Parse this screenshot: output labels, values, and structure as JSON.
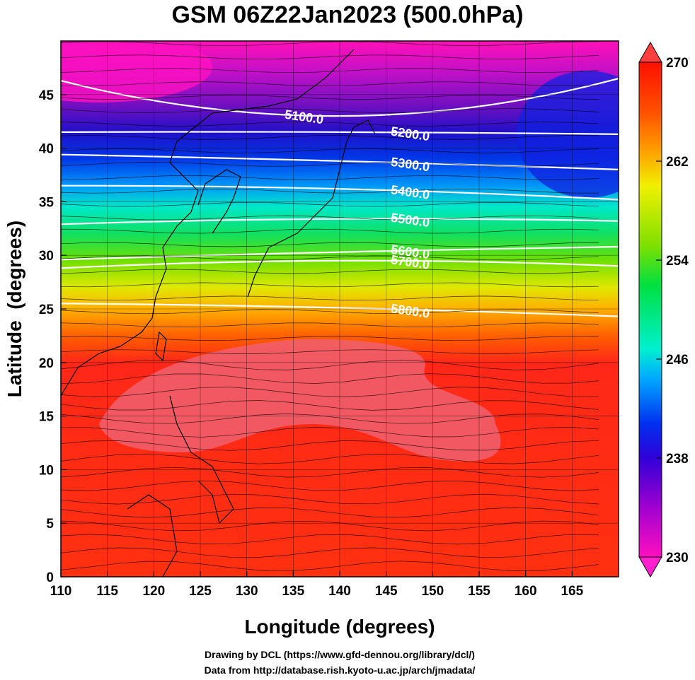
{
  "chart_data": {
    "type": "heatmap",
    "title": "GSM 06Z22Jan2023 (500.0hPa)",
    "xlabel": "Longitude (degrees)",
    "ylabel": "Latitude  (degrees)",
    "xlim": [
      110,
      170
    ],
    "ylim": [
      0,
      50
    ],
    "xticks": [
      110,
      115,
      120,
      125,
      130,
      135,
      140,
      145,
      150,
      155,
      160,
      165
    ],
    "yticks": [
      0,
      5,
      10,
      15,
      20,
      25,
      30,
      35,
      40,
      45
    ],
    "colorbar": {
      "min": 230,
      "max": 270,
      "ticks": [
        230,
        238,
        246,
        254,
        262,
        270
      ],
      "colors": [
        "#ff10c0",
        "#a000d0",
        "#3000d8",
        "#0030f0",
        "#00a8ff",
        "#00f0d0",
        "#00e040",
        "#80e000",
        "#f0f000",
        "#ffa000",
        "#ff5000",
        "#ff1000"
      ]
    },
    "contours": [
      {
        "label": "5100.0",
        "lat_at_110": 46.3,
        "lat_at_140": 43.0,
        "lat_at_170": 46.5
      },
      {
        "label": "5200.0",
        "lat_at_110": 41.5,
        "lat_at_140": 41.5,
        "lat_at_170": 41.3
      },
      {
        "label": "5300.0",
        "lat_at_110": 39.4,
        "lat_at_140": 38.8,
        "lat_at_170": 38.0
      },
      {
        "label": "5400.0",
        "lat_at_110": 36.5,
        "lat_at_140": 36.2,
        "lat_at_170": 35.2
      },
      {
        "label": "5500.0",
        "lat_at_110": 32.9,
        "lat_at_140": 33.4,
        "lat_at_170": 33.2
      },
      {
        "label": "5600.0",
        "lat_at_110": 29.6,
        "lat_at_140": 30.3,
        "lat_at_170": 30.8
      },
      {
        "label": "5700.0",
        "lat_at_110": 28.8,
        "lat_at_140": 29.5,
        "lat_at_170": 29.0
      },
      {
        "label": "5800.0",
        "lat_at_110": 25.5,
        "lat_at_140": 25.1,
        "lat_at_170": 24.3
      }
    ]
  },
  "credits": {
    "line1": "Drawing by DCL (https://www.gfd-dennou.org/library/dcl/)",
    "line2": "Data from http://database.rish.kyoto-u.ac.jp/arch/jmadata/"
  }
}
